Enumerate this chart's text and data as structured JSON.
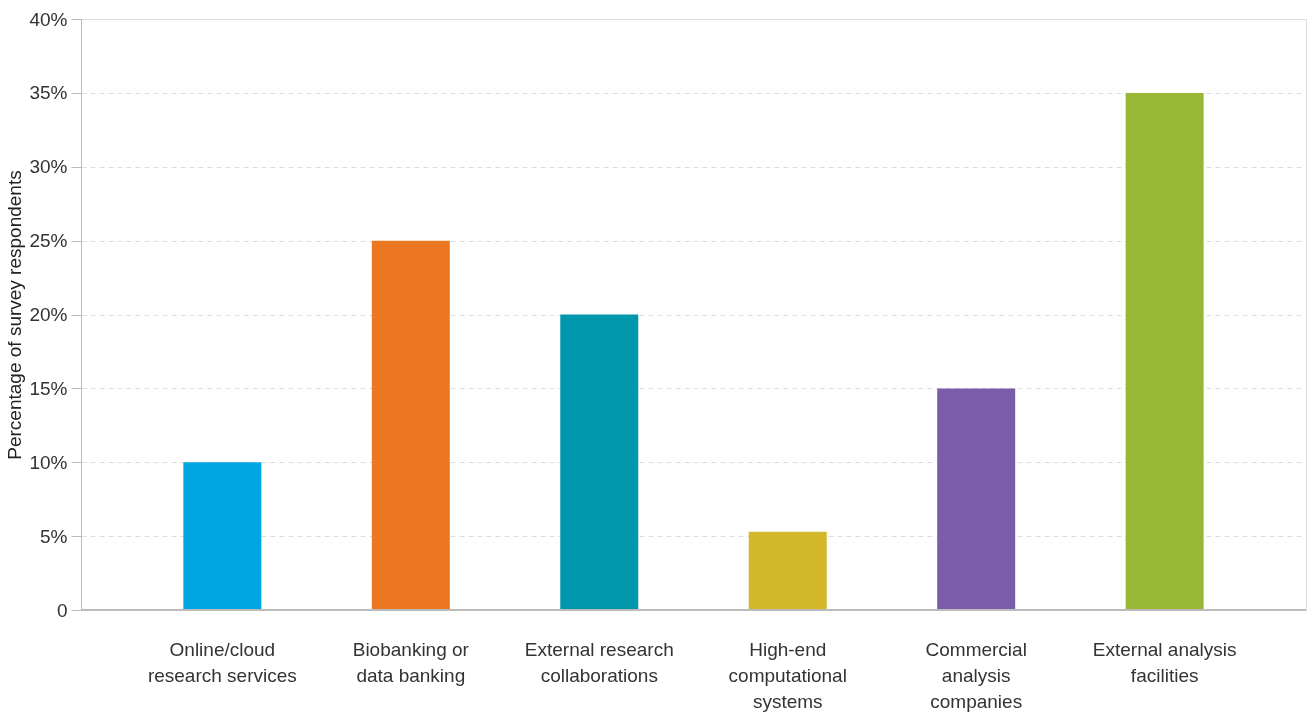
{
  "chart_data": {
    "type": "bar",
    "ylabel": "Percentage of survey respondents",
    "categories": [
      "Online/cloud research services",
      "Biobanking or data banking",
      "External research collaborations",
      "High-end computational systems",
      "Commercial analysis companies",
      "External analysis facilities"
    ],
    "values": [
      10,
      25,
      20,
      5.3,
      15,
      35
    ],
    "colors": [
      "#00a6e2",
      "#ec7723",
      "#0096ab",
      "#d4b82c",
      "#7a5ca8",
      "#97b735"
    ],
    "ylim": [
      0,
      40
    ],
    "yticks": [
      0,
      {
        "value": 5,
        "label": "5%"
      },
      {
        "value": 10,
        "label": "10%"
      },
      {
        "value": 15,
        "label": "15%"
      },
      {
        "value": 20,
        "label": "20%"
      },
      {
        "value": 25,
        "label": "25%"
      },
      {
        "value": 30,
        "label": "30%"
      },
      {
        "value": 35,
        "label": "35%"
      },
      {
        "value": 40,
        "label": "40%"
      }
    ],
    "grid": "y",
    "legend": false
  }
}
